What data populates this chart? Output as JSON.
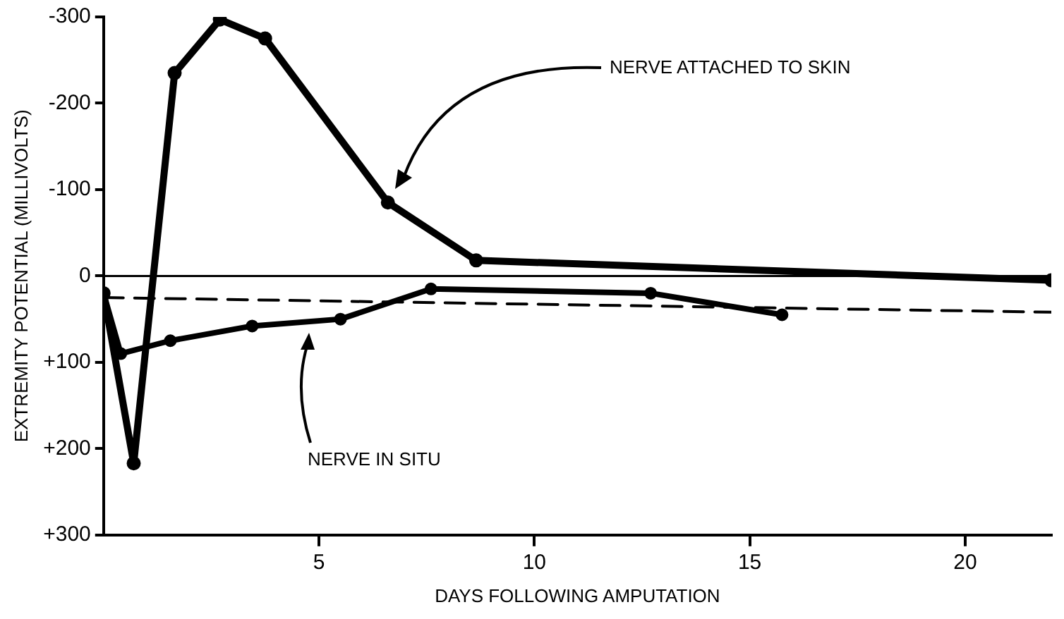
{
  "chart_data": {
    "type": "line",
    "xlabel": "DAYS FOLLOWING AMPUTATION",
    "ylabel": "EXTREMITY POTENTIAL (MILLIVOLTS)",
    "xlim": [
      0,
      22
    ],
    "xticks": [
      5,
      10,
      15,
      20
    ],
    "ylim": [
      300,
      -300
    ],
    "yticks": [
      {
        "value": -300,
        "label": "-300"
      },
      {
        "value": -200,
        "label": "-200"
      },
      {
        "value": -100,
        "label": "-100"
      },
      0,
      {
        "value": 100,
        "label": "+100"
      },
      {
        "value": 200,
        "label": "+200"
      },
      {
        "value": 300,
        "label": "+300"
      }
    ],
    "grid": false,
    "legend": false,
    "series": [
      {
        "color": "#000000",
        "x": [
          0,
          0.7,
          1.65,
          2.7,
          3.75,
          6.6,
          8.65,
          22
        ],
        "values": [
          20,
          217,
          -235,
          -297,
          -275,
          -85,
          -18,
          5
        ],
        "marker": "circle",
        "line_style": "solid"
      },
      {
        "color": "#000000",
        "x": [
          0,
          0.4,
          1.55,
          3.45,
          5.5,
          7.6,
          12.7,
          15.75
        ],
        "values": [
          20,
          90,
          75,
          58,
          50,
          15,
          20,
          45
        ],
        "marker": "circle",
        "line_style": "solid"
      },
      {
        "color": "#000000",
        "x": [
          0,
          22
        ],
        "values": [
          25,
          42
        ],
        "marker": "none",
        "line_style": "dashed"
      }
    ],
    "ref_lines": [
      {
        "axis": "y",
        "value": 0
      }
    ],
    "annotations": [
      "NERVE ATTACHED TO SKIN",
      "NERVE IN SITU"
    ]
  }
}
